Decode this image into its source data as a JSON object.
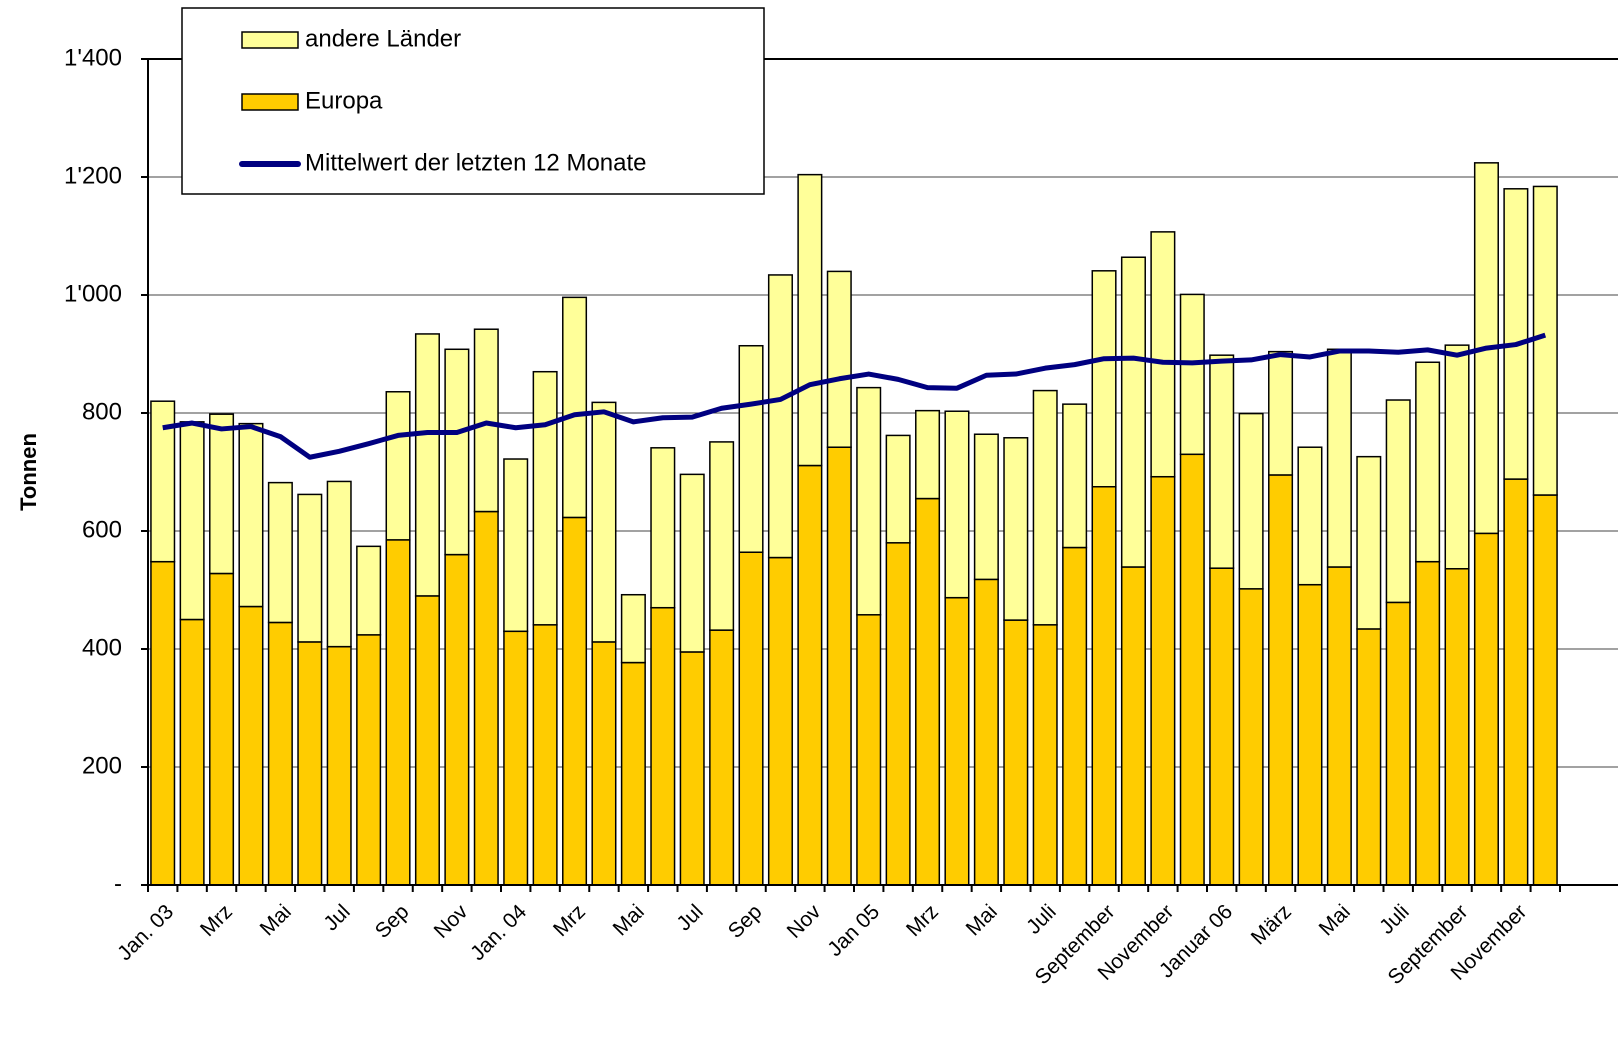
{
  "chart_data": {
    "type": "bar",
    "stacked": true,
    "y_label": "Tonnen",
    "categories": [
      "Jan. 03",
      null,
      "Mrz",
      null,
      "Mai",
      null,
      "Jul",
      null,
      "Sep",
      null,
      "Nov",
      null,
      "Jan. 04",
      null,
      "Mrz",
      null,
      "Mai",
      null,
      "Jul",
      null,
      "Sep",
      null,
      "Nov",
      null,
      "Jan 05",
      null,
      "Mrz",
      null,
      "Mai",
      null,
      "Juli",
      null,
      "September",
      null,
      "November",
      null,
      "Januar 06",
      null,
      "März",
      null,
      "Mai",
      null,
      "Juli",
      null,
      "September",
      null,
      "November",
      null
    ],
    "series": [
      {
        "name": "Europa",
        "color": "#ffcc00",
        "values": [
          548,
          450,
          528,
          472,
          445,
          412,
          404,
          424,
          585,
          490,
          560,
          633,
          430,
          441,
          623,
          412,
          377,
          470,
          395,
          432,
          564,
          555,
          711,
          742,
          458,
          580,
          655,
          487,
          518,
          449,
          441,
          572,
          675,
          539,
          692,
          730,
          537,
          502,
          695,
          509,
          539,
          434,
          479,
          548,
          536,
          596,
          688,
          661
        ]
      },
      {
        "name": "andere Länder",
        "color": "#ffff99",
        "values": [
          272,
          335,
          270,
          310,
          237,
          250,
          280,
          150,
          251,
          444,
          348,
          309,
          292,
          429,
          373,
          406,
          115,
          271,
          301,
          319,
          350,
          479,
          493,
          298,
          385,
          182,
          149,
          316,
          246,
          309,
          397,
          243,
          366,
          525,
          415,
          271,
          361,
          297,
          209,
          233,
          369,
          292,
          343,
          338,
          379,
          628,
          492,
          523
        ]
      },
      {
        "name": "Mittelwert der letzten 12 Monate",
        "type": "line",
        "color": "#000080",
        "values": [
          775,
          783,
          773,
          777,
          760,
          725,
          735,
          748,
          762,
          767,
          767,
          783,
          775,
          780,
          797,
          802,
          785,
          792,
          793,
          808,
          815,
          823,
          848,
          858,
          866,
          857,
          843,
          842,
          864,
          866,
          876,
          882,
          892,
          893,
          886,
          885,
          888,
          890,
          899,
          895,
          905,
          905,
          903,
          907,
          898,
          910,
          916,
          932
        ]
      }
    ],
    "ylim": [
      0,
      1400
    ],
    "yticks": [
      {
        "value": 0,
        "label": "-"
      },
      200,
      400,
      600,
      800,
      {
        "value": 1000,
        "label": "1'000"
      },
      {
        "value": 1200,
        "label": "1'200"
      },
      {
        "value": 1400,
        "label": "1'400"
      }
    ],
    "grid": true,
    "legend": "upper left"
  }
}
